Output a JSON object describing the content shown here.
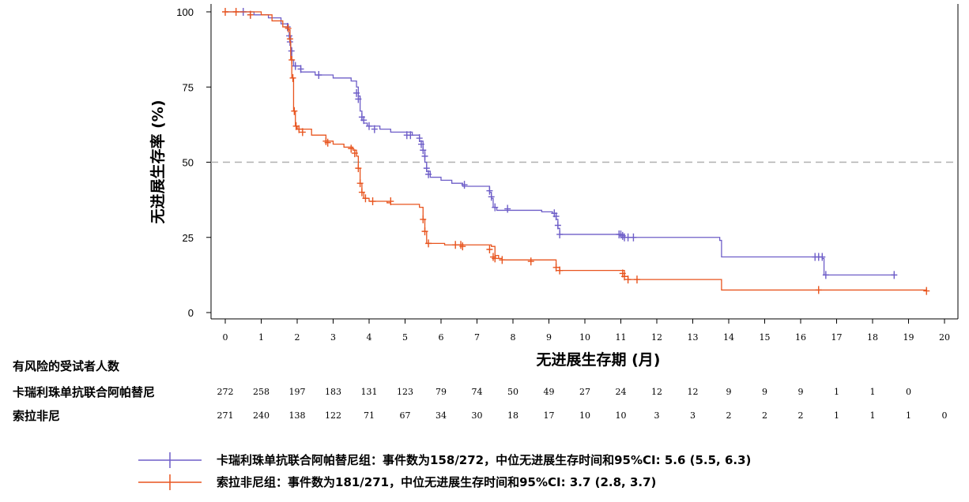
{
  "chart_data": {
    "type": "line",
    "subtype": "kaplan-meier step curve",
    "xlabel": "无进展生存期 (月)",
    "ylabel": "无进展生存率 (%)",
    "x_ticks": [
      0,
      1,
      2,
      3,
      4,
      5,
      6,
      7,
      8,
      9,
      10,
      11,
      12,
      13,
      14,
      15,
      16,
      17,
      18,
      19,
      20
    ],
    "y_ticks": [
      0,
      25,
      50,
      75,
      100
    ],
    "xlim": [
      0,
      20
    ],
    "ylim": [
      0,
      100
    ],
    "reference_line": {
      "y": 50,
      "style": "dashed",
      "color": "#b0b0b0"
    },
    "grid": false,
    "series": [
      {
        "name": "卡瑞利珠单抗联合阿帕替尼组：事件数为158/272，中位无进展生存时间和95%CI: 5.6 (5.5, 6.3)",
        "color": "#6e5ec8",
        "steps": [
          [
            0,
            100
          ],
          [
            0.8,
            99
          ],
          [
            1.2,
            98
          ],
          [
            1.55,
            96
          ],
          [
            1.75,
            94
          ],
          [
            1.8,
            92
          ],
          [
            1.82,
            88
          ],
          [
            1.85,
            84
          ],
          [
            1.9,
            82
          ],
          [
            2.1,
            80
          ],
          [
            2.5,
            79
          ],
          [
            3.0,
            78
          ],
          [
            3.5,
            77
          ],
          [
            3.65,
            75
          ],
          [
            3.7,
            72
          ],
          [
            3.75,
            67
          ],
          [
            3.8,
            64
          ],
          [
            3.85,
            63
          ],
          [
            3.95,
            62
          ],
          [
            4.3,
            61
          ],
          [
            4.6,
            60
          ],
          [
            5.2,
            59
          ],
          [
            5.4,
            57
          ],
          [
            5.5,
            54
          ],
          [
            5.55,
            50
          ],
          [
            5.6,
            47
          ],
          [
            5.7,
            45
          ],
          [
            6.0,
            44
          ],
          [
            6.3,
            43
          ],
          [
            6.6,
            42
          ],
          [
            7.35,
            40
          ],
          [
            7.4,
            38
          ],
          [
            7.45,
            35
          ],
          [
            7.55,
            34
          ],
          [
            8.8,
            33.5
          ],
          [
            9.1,
            33
          ],
          [
            9.2,
            31
          ],
          [
            9.25,
            28
          ],
          [
            9.3,
            26
          ],
          [
            11.05,
            25.5
          ],
          [
            11.1,
            25
          ],
          [
            13.75,
            24
          ],
          [
            13.8,
            18.5
          ],
          [
            16.6,
            18
          ],
          [
            16.65,
            12.5
          ],
          [
            18.6,
            12.5
          ]
        ],
        "censor_marks": [
          [
            0.5,
            100
          ],
          [
            0.7,
            99
          ],
          [
            1.73,
            95
          ],
          [
            1.78,
            92
          ],
          [
            1.8,
            90
          ],
          [
            1.84,
            87
          ],
          [
            1.95,
            82
          ],
          [
            2.1,
            81
          ],
          [
            2.6,
            79
          ],
          [
            3.65,
            73
          ],
          [
            3.7,
            71
          ],
          [
            3.8,
            65
          ],
          [
            3.85,
            64
          ],
          [
            4.0,
            62
          ],
          [
            4.15,
            61
          ],
          [
            5.05,
            59
          ],
          [
            5.15,
            59
          ],
          [
            5.4,
            58
          ],
          [
            5.45,
            56
          ],
          [
            5.5,
            54
          ],
          [
            5.55,
            52
          ],
          [
            5.6,
            48
          ],
          [
            5.65,
            46
          ],
          [
            6.65,
            42.5
          ],
          [
            7.35,
            40.5
          ],
          [
            7.4,
            38.5
          ],
          [
            7.5,
            35
          ],
          [
            7.85,
            34.5
          ],
          [
            9.15,
            33
          ],
          [
            9.2,
            32
          ],
          [
            9.25,
            29
          ],
          [
            9.3,
            26
          ],
          [
            10.95,
            26
          ],
          [
            11.0,
            26
          ],
          [
            11.05,
            25.5
          ],
          [
            11.1,
            25
          ],
          [
            11.2,
            25
          ],
          [
            11.35,
            25
          ],
          [
            16.4,
            18.5
          ],
          [
            16.5,
            18.5
          ],
          [
            16.6,
            18.5
          ],
          [
            16.7,
            12.5
          ],
          [
            18.6,
            12.5
          ]
        ]
      },
      {
        "name": "索拉非尼组：事件数为181/271，中位无进展生存时间和95%CI: 3.7 (2.8, 3.7)",
        "color": "#e8541e",
        "steps": [
          [
            0,
            100
          ],
          [
            1.0,
            99
          ],
          [
            1.3,
            97
          ],
          [
            1.6,
            95
          ],
          [
            1.75,
            94
          ],
          [
            1.8,
            90
          ],
          [
            1.82,
            84
          ],
          [
            1.85,
            78
          ],
          [
            1.9,
            67
          ],
          [
            1.95,
            62
          ],
          [
            2.0,
            61
          ],
          [
            2.4,
            59
          ],
          [
            2.8,
            57
          ],
          [
            3.0,
            56
          ],
          [
            3.3,
            55
          ],
          [
            3.55,
            54
          ],
          [
            3.65,
            52
          ],
          [
            3.7,
            48
          ],
          [
            3.75,
            43
          ],
          [
            3.8,
            40
          ],
          [
            3.85,
            38
          ],
          [
            4.0,
            37
          ],
          [
            4.5,
            36.5
          ],
          [
            4.6,
            36
          ],
          [
            5.4,
            35
          ],
          [
            5.5,
            31
          ],
          [
            5.55,
            27
          ],
          [
            5.6,
            23
          ],
          [
            6.1,
            22.5
          ],
          [
            7.4,
            22
          ],
          [
            7.5,
            19
          ],
          [
            7.6,
            18
          ],
          [
            7.7,
            17.5
          ],
          [
            9.2,
            15
          ],
          [
            9.3,
            14
          ],
          [
            11.1,
            12
          ],
          [
            11.2,
            11
          ],
          [
            13.8,
            7.5
          ],
          [
            19.5,
            7.2
          ]
        ],
        "censor_marks": [
          [
            0,
            100
          ],
          [
            0.3,
            100
          ],
          [
            0.7,
            99
          ],
          [
            1.75,
            94.5
          ],
          [
            1.8,
            91
          ],
          [
            1.85,
            84
          ],
          [
            1.88,
            78
          ],
          [
            1.92,
            67
          ],
          [
            1.97,
            62
          ],
          [
            2.05,
            61
          ],
          [
            2.15,
            60
          ],
          [
            2.8,
            57
          ],
          [
            2.85,
            56.5
          ],
          [
            3.5,
            54.5
          ],
          [
            3.6,
            53
          ],
          [
            3.7,
            48
          ],
          [
            3.75,
            43
          ],
          [
            3.8,
            40
          ],
          [
            3.9,
            38
          ],
          [
            4.1,
            37
          ],
          [
            4.6,
            37
          ],
          [
            5.5,
            31
          ],
          [
            5.55,
            27
          ],
          [
            5.65,
            23
          ],
          [
            6.4,
            22.5
          ],
          [
            6.55,
            22.5
          ],
          [
            6.6,
            22
          ],
          [
            7.35,
            21
          ],
          [
            7.45,
            18.5
          ],
          [
            7.5,
            18
          ],
          [
            7.7,
            17.5
          ],
          [
            8.5,
            17
          ],
          [
            9.2,
            15
          ],
          [
            9.3,
            14
          ],
          [
            11.05,
            13
          ],
          [
            11.1,
            12
          ],
          [
            11.2,
            11
          ],
          [
            11.45,
            11
          ],
          [
            16.5,
            7.5
          ],
          [
            19.5,
            7.2
          ]
        ]
      }
    ],
    "risk_table": {
      "title": "有风险的受试者人数",
      "times": [
        0,
        1,
        2,
        3,
        4,
        5,
        6,
        7,
        8,
        9,
        10,
        11,
        12,
        13,
        14,
        15,
        16,
        17,
        18,
        19,
        20
      ],
      "rows": [
        {
          "label": "卡瑞利珠单抗联合阿帕替尼",
          "counts": [
            "272",
            "258",
            "197",
            "183",
            "131",
            "123",
            "79",
            "74",
            "50",
            "49",
            "27",
            "24",
            "12",
            "12",
            "9",
            "9",
            "9",
            "1",
            "1",
            "0",
            ""
          ]
        },
        {
          "label": "索拉非尼",
          "counts": [
            "271",
            "240",
            "138",
            "122",
            "71",
            "67",
            "34",
            "30",
            "18",
            "17",
            "10",
            "10",
            "3",
            "3",
            "2",
            "2",
            "2",
            "1",
            "1",
            "1",
            "0"
          ]
        }
      ]
    },
    "legend": {
      "position": "bottom"
    }
  }
}
